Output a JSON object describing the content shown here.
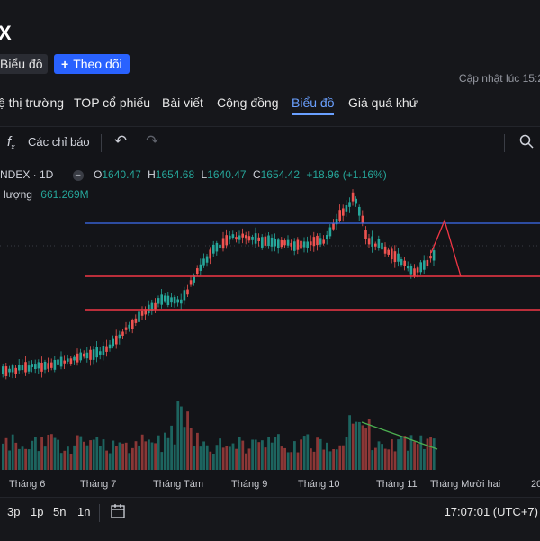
{
  "header": {
    "title": "X",
    "chart_button": "Biểu đồ",
    "follow_button": "Theo dõi",
    "updated": "Cập nhật lúc  15:2"
  },
  "tabs": [
    {
      "label": "ệ thị trường"
    },
    {
      "label": "TOP cổ phiếu"
    },
    {
      "label": "Bài viết"
    },
    {
      "label": "Cộng đồng"
    },
    {
      "label": "Biểu đồ",
      "active": true
    },
    {
      "label": "Giá quá khứ"
    }
  ],
  "toolbar": {
    "indicators": "Các chỉ báo",
    "icons": [
      "fx-icon",
      "undo-icon",
      "redo-icon",
      "camera-icon"
    ]
  },
  "legend": {
    "symbol": "NDEX · 1D",
    "o_label": "O",
    "o": "1640.47",
    "h_label": "H",
    "h": "1654.68",
    "l_label": "L",
    "l": "1640.47",
    "c_label": "C",
    "c": "1654.42",
    "change": "+18.96 (+1.16%)",
    "volume_label": "i lượng",
    "volume": "661.269M"
  },
  "xaxis": [
    "Tháng 6",
    "Tháng 7",
    "Tháng Tám",
    "Tháng 9",
    "Tháng 10",
    "Tháng 11",
    "Tháng Mười hai",
    "20"
  ],
  "ranges": [
    "3p",
    "1p",
    "5n",
    "1n"
  ],
  "clock": "17:07:01 (UTC+7)",
  "colors": {
    "up": "#26a69a",
    "down": "#ef5350",
    "accent": "#2962ff",
    "tab_active": "#6aa0ff",
    "hline_blue": "#3d6df2",
    "hline_red": "#f23645"
  }
}
